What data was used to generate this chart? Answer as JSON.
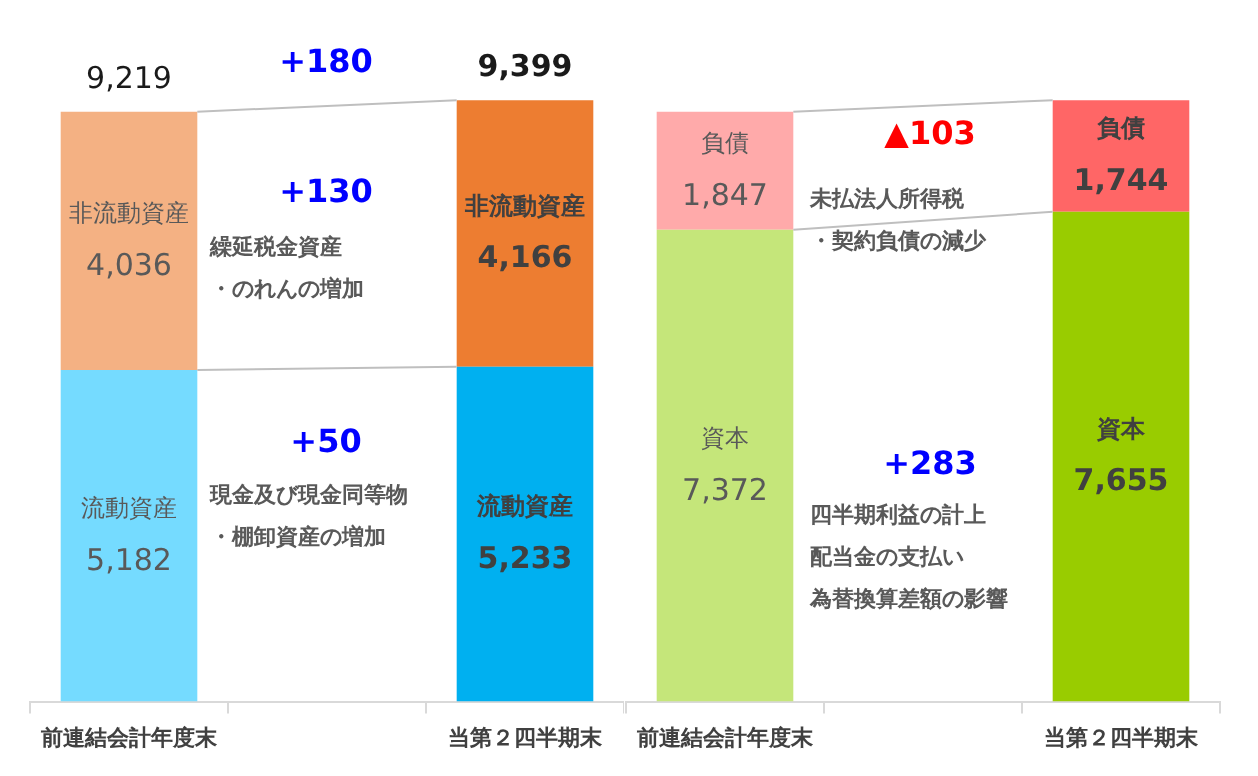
{
  "chart_data": [
    {
      "type": "bar",
      "stacked": true,
      "categories": [
        "前連結会計年度末",
        null,
        "当第２四半期末"
      ],
      "series": [
        {
          "name": "流動資産",
          "colors": [
            "#75dbff",
            null,
            "#00b0f0"
          ],
          "values": [
            5182,
            null,
            5233
          ],
          "value_labels": [
            "5,182",
            null,
            "5,233"
          ]
        },
        {
          "name": "非流動資産",
          "colors": [
            "#f4b183",
            null,
            "#ed7d31"
          ],
          "values": [
            4036,
            null,
            4166
          ],
          "value_labels": [
            "4,036",
            null,
            "4,166"
          ]
        }
      ],
      "totals": [
        "9,219",
        null,
        "9,399"
      ],
      "annotations": [
        "+180",
        "+130",
        "繰延税金資産",
        "・のれんの増加",
        "+50",
        "現金及び現金同等物",
        "・棚卸資産の増加"
      ],
      "tick_labels": "x",
      "legend": false,
      "grid": false
    },
    {
      "type": "bar",
      "stacked": true,
      "categories": [
        "前連結会計年度末",
        null,
        "当第２四半期末"
      ],
      "series": [
        {
          "name": "資本",
          "colors": [
            "#c5e67a",
            null,
            "#99cc00"
          ],
          "values": [
            7372,
            null,
            7655
          ],
          "value_labels": [
            "7,372",
            null,
            "7,655"
          ]
        },
        {
          "name": "負債",
          "colors": [
            "#ffaaaa",
            null,
            "#ff6666"
          ],
          "values": [
            1847,
            null,
            1744
          ],
          "value_labels": [
            "1,847",
            null,
            "1,744"
          ]
        }
      ],
      "annotations": [
        "▲103",
        "未払法人所得税",
        "・契約負債の減少",
        "+283",
        "四半期利益の計上",
        "配当金の支払い",
        "為替換算差額の影響"
      ],
      "tick_labels": "x",
      "legend": false,
      "grid": false
    }
  ]
}
